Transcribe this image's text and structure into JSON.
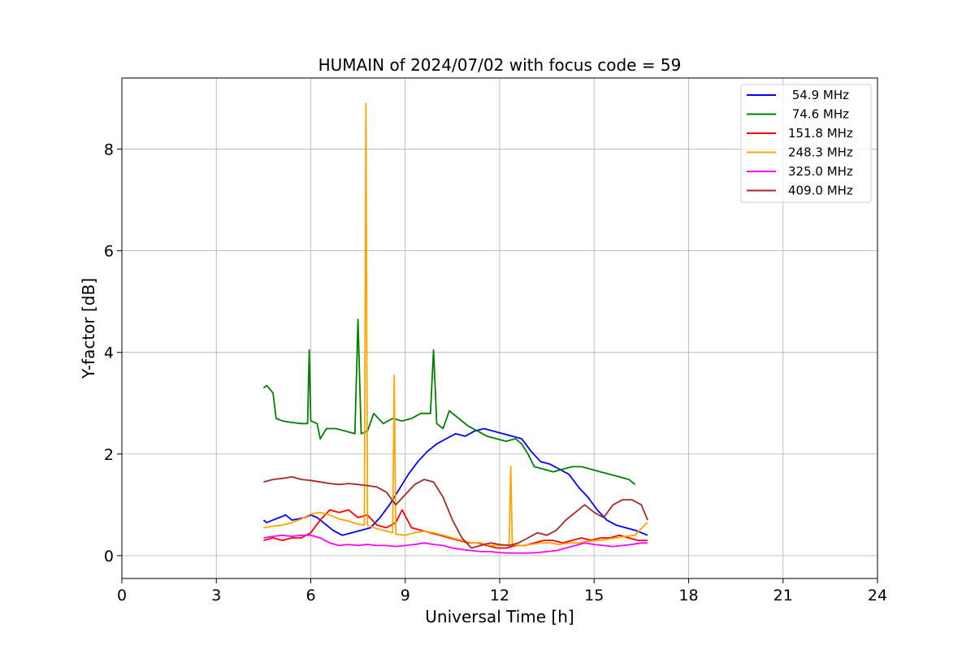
{
  "chart_data": {
    "type": "line",
    "title": "HUMAIN of 2024/07/02 with focus code = 59",
    "xlabel": "Universal Time [h]",
    "ylabel": "Y-factor [dB]",
    "xlim": [
      0,
      24
    ],
    "ylim": [
      -0.45,
      9.4
    ],
    "xticks": [
      0,
      3,
      6,
      9,
      12,
      15,
      18,
      21,
      24
    ],
    "xtick_labels": [
      "0",
      "3",
      "6",
      "9",
      "12",
      "15",
      "18",
      "21",
      "24"
    ],
    "yticks": [
      0,
      2,
      4,
      6,
      8
    ],
    "ytick_labels": [
      "0",
      "2",
      "4",
      "6",
      "8"
    ],
    "grid": true,
    "legend_position": "top-right",
    "series": [
      {
        "name": " 54.9 MHz",
        "color": "#0000ff",
        "x": [
          4.5,
          4.6,
          4.8,
          5.0,
          5.2,
          5.4,
          5.6,
          5.8,
          6.0,
          6.2,
          6.5,
          6.7,
          7.0,
          7.3,
          7.6,
          7.9,
          8.2,
          8.5,
          8.8,
          9.1,
          9.4,
          9.7,
          10.0,
          10.3,
          10.6,
          10.9,
          11.2,
          11.5,
          11.8,
          12.1,
          12.4,
          12.7,
          13.0,
          13.3,
          13.6,
          13.9,
          14.2,
          14.5,
          14.8,
          15.1,
          15.4,
          15.7,
          16.0,
          16.3,
          16.5,
          16.7
        ],
        "y": [
          0.7,
          0.65,
          0.7,
          0.75,
          0.8,
          0.7,
          0.72,
          0.75,
          0.8,
          0.75,
          0.6,
          0.5,
          0.4,
          0.45,
          0.5,
          0.55,
          0.75,
          1.0,
          1.3,
          1.6,
          1.85,
          2.05,
          2.2,
          2.3,
          2.4,
          2.35,
          2.45,
          2.5,
          2.45,
          2.4,
          2.35,
          2.3,
          2.05,
          1.85,
          1.8,
          1.7,
          1.6,
          1.35,
          1.15,
          0.9,
          0.7,
          0.6,
          0.55,
          0.5,
          0.45,
          0.4
        ]
      },
      {
        "name": " 74.6 MHz",
        "color": "#008000",
        "x": [
          4.5,
          4.6,
          4.8,
          4.9,
          5.1,
          5.4,
          5.7,
          5.9,
          5.95,
          6.0,
          6.2,
          6.3,
          6.5,
          6.8,
          7.1,
          7.4,
          7.5,
          7.6,
          7.8,
          8.0,
          8.3,
          8.6,
          8.9,
          9.2,
          9.5,
          9.8,
          9.9,
          10.0,
          10.2,
          10.4,
          10.7,
          11.0,
          11.3,
          11.6,
          11.9,
          12.2,
          12.5,
          12.7,
          12.9,
          13.1,
          13.4,
          13.7,
          14.0,
          14.3,
          14.6,
          14.9,
          15.2,
          15.5,
          15.8,
          16.1,
          16.3
        ],
        "y": [
          3.3,
          3.35,
          3.2,
          2.7,
          2.65,
          2.62,
          2.6,
          2.6,
          4.05,
          2.65,
          2.6,
          2.3,
          2.5,
          2.5,
          2.45,
          2.4,
          4.65,
          2.4,
          2.45,
          2.8,
          2.6,
          2.7,
          2.65,
          2.7,
          2.8,
          2.8,
          4.05,
          2.6,
          2.5,
          2.85,
          2.7,
          2.55,
          2.45,
          2.35,
          2.3,
          2.25,
          2.3,
          2.2,
          2.0,
          1.75,
          1.7,
          1.65,
          1.7,
          1.75,
          1.75,
          1.7,
          1.65,
          1.6,
          1.55,
          1.5,
          1.4
        ]
      },
      {
        "name": "151.8 MHz",
        "color": "#ff0000",
        "x": [
          4.5,
          4.8,
          5.1,
          5.4,
          5.7,
          6.0,
          6.3,
          6.6,
          6.9,
          7.2,
          7.5,
          7.8,
          8.1,
          8.4,
          8.7,
          8.9,
          9.2,
          9.5,
          9.8,
          10.1,
          10.4,
          10.7,
          11.0,
          11.3,
          11.6,
          11.9,
          12.2,
          12.5,
          12.8,
          13.1,
          13.4,
          13.7,
          14.0,
          14.3,
          14.6,
          14.9,
          15.2,
          15.5,
          15.8,
          16.1,
          16.4,
          16.7
        ],
        "y": [
          0.3,
          0.35,
          0.3,
          0.35,
          0.35,
          0.45,
          0.7,
          0.9,
          0.85,
          0.9,
          0.75,
          0.8,
          0.6,
          0.55,
          0.65,
          0.9,
          0.55,
          0.5,
          0.45,
          0.4,
          0.35,
          0.3,
          0.25,
          0.25,
          0.2,
          0.15,
          0.15,
          0.2,
          0.2,
          0.25,
          0.3,
          0.3,
          0.25,
          0.3,
          0.35,
          0.3,
          0.35,
          0.35,
          0.4,
          0.35,
          0.3,
          0.3
        ]
      },
      {
        "name": "248.3 MHz",
        "color": "#ffa500",
        "x": [
          4.5,
          4.8,
          5.1,
          5.4,
          5.7,
          6.0,
          6.3,
          6.6,
          6.9,
          7.2,
          7.5,
          7.7,
          7.75,
          7.8,
          8.0,
          8.3,
          8.6,
          8.65,
          8.7,
          9.0,
          9.3,
          9.6,
          9.9,
          10.2,
          10.5,
          10.8,
          11.1,
          11.4,
          11.7,
          12.0,
          12.3,
          12.35,
          12.4,
          12.7,
          13.0,
          13.3,
          13.6,
          13.9,
          14.2,
          14.5,
          14.8,
          15.1,
          15.4,
          15.7,
          16.0,
          16.3,
          16.6,
          16.7
        ],
        "y": [
          0.55,
          0.58,
          0.6,
          0.65,
          0.72,
          0.82,
          0.85,
          0.8,
          0.72,
          0.68,
          0.62,
          0.6,
          8.9,
          0.6,
          0.55,
          0.5,
          0.45,
          3.55,
          0.42,
          0.4,
          0.45,
          0.48,
          0.45,
          0.4,
          0.35,
          0.3,
          0.25,
          0.25,
          0.2,
          0.2,
          0.22,
          1.75,
          0.22,
          0.2,
          0.22,
          0.25,
          0.25,
          0.22,
          0.25,
          0.25,
          0.28,
          0.3,
          0.32,
          0.35,
          0.38,
          0.4,
          0.6,
          0.65
        ]
      },
      {
        "name": "325.0 MHz",
        "color": "#ff00ff",
        "x": [
          4.5,
          4.8,
          5.1,
          5.4,
          5.7,
          6.0,
          6.3,
          6.6,
          6.9,
          7.2,
          7.5,
          7.8,
          8.1,
          8.4,
          8.7,
          9.0,
          9.3,
          9.6,
          9.9,
          10.2,
          10.5,
          10.8,
          11.1,
          11.4,
          11.7,
          12.0,
          12.3,
          12.6,
          12.9,
          13.2,
          13.5,
          13.8,
          14.1,
          14.4,
          14.7,
          15.0,
          15.3,
          15.6,
          15.9,
          16.2,
          16.5,
          16.7
        ],
        "y": [
          0.35,
          0.38,
          0.4,
          0.38,
          0.4,
          0.4,
          0.35,
          0.25,
          0.2,
          0.22,
          0.2,
          0.22,
          0.2,
          0.2,
          0.18,
          0.2,
          0.22,
          0.25,
          0.22,
          0.2,
          0.15,
          0.12,
          0.1,
          0.08,
          0.08,
          0.06,
          0.05,
          0.05,
          0.05,
          0.06,
          0.08,
          0.1,
          0.15,
          0.2,
          0.25,
          0.22,
          0.2,
          0.18,
          0.2,
          0.22,
          0.25,
          0.25
        ]
      },
      {
        "name": "409.0 MHz",
        "color": "#a52a2a",
        "x": [
          4.5,
          4.8,
          5.1,
          5.4,
          5.7,
          6.0,
          6.3,
          6.6,
          6.9,
          7.2,
          7.5,
          7.8,
          8.1,
          8.4,
          8.7,
          9.0,
          9.3,
          9.6,
          9.9,
          10.2,
          10.5,
          10.8,
          11.1,
          11.4,
          11.7,
          12.0,
          12.3,
          12.6,
          12.9,
          13.2,
          13.5,
          13.8,
          14.1,
          14.4,
          14.7,
          15.0,
          15.3,
          15.6,
          15.9,
          16.2,
          16.5,
          16.7
        ],
        "y": [
          1.45,
          1.5,
          1.52,
          1.55,
          1.5,
          1.48,
          1.45,
          1.42,
          1.4,
          1.42,
          1.4,
          1.38,
          1.35,
          1.25,
          1.0,
          1.2,
          1.4,
          1.5,
          1.45,
          1.15,
          0.7,
          0.35,
          0.15,
          0.2,
          0.25,
          0.22,
          0.2,
          0.25,
          0.35,
          0.45,
          0.4,
          0.5,
          0.7,
          0.85,
          1.0,
          0.85,
          0.75,
          1.0,
          1.1,
          1.1,
          1.0,
          0.7
        ]
      }
    ]
  }
}
